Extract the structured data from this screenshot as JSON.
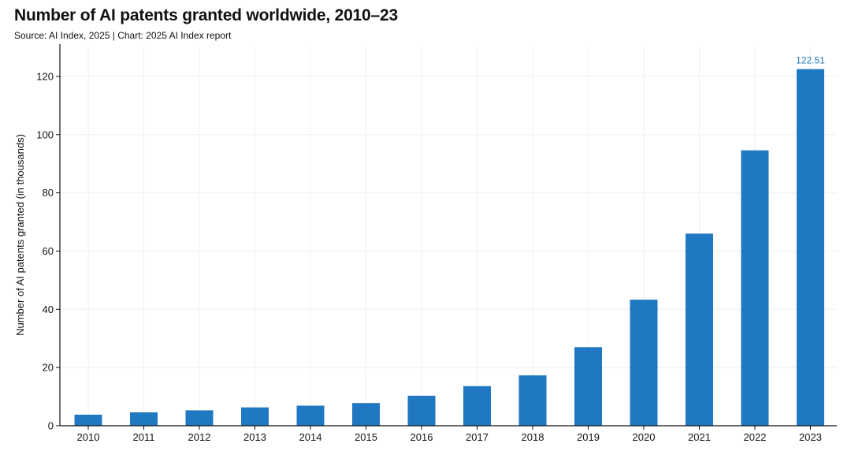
{
  "chart_data": {
    "type": "bar",
    "title": "Number of AI patents granted worldwide, 2010–23",
    "subtitle": "Source: AI Index, 2025 | Chart: 2025 AI Index report",
    "xlabel": "",
    "ylabel": "Number of AI patents granted (in thousands)",
    "categories": [
      "2010",
      "2011",
      "2012",
      "2013",
      "2014",
      "2015",
      "2016",
      "2017",
      "2018",
      "2019",
      "2020",
      "2021",
      "2022",
      "2023"
    ],
    "values": [
      3.8,
      4.6,
      5.3,
      6.3,
      6.9,
      7.8,
      10.3,
      13.6,
      17.3,
      27.0,
      43.3,
      66.0,
      94.6,
      122.51
    ],
    "data_labels": [
      {
        "category": "2023",
        "text": "122.51"
      }
    ],
    "yticks": [
      0,
      20,
      40,
      60,
      80,
      100,
      120
    ],
    "ylim": [
      0,
      130
    ],
    "grid": true,
    "legend": "none",
    "colors": {
      "bar": "#1f78c1",
      "data_label": "#1f78c1",
      "grid": "#efefef",
      "axis": "#111111"
    }
  }
}
